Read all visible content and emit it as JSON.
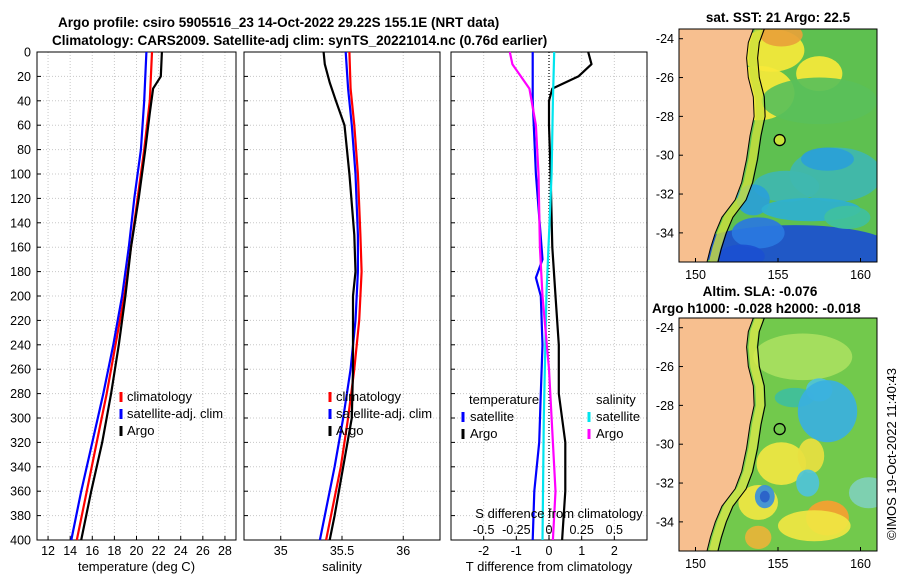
{
  "header": {
    "line1": "Argo profile: csiro 5905516_23 14-Oct-2022 29.22S 155.1E (NRT data)",
    "line2": "Climatology: CARS2009. Satellite-adj clim: synTS_20221014.nc (0.76d earlier)"
  },
  "footer": {
    "stamp": "©IMOS 19-Oct-2022 11:40:43"
  },
  "colors": {
    "climatology": "#ff0000",
    "satellite": "#0000ff",
    "argo": "#000000",
    "sat_salinity": "#00e5ee",
    "argo_salinity": "#ff00ff",
    "land": "#f7bf8f"
  },
  "chart_data": [
    {
      "type": "line",
      "id": "temperature",
      "xlabel": "temperature (deg C)",
      "ylabel": "",
      "xlim": [
        11,
        29
      ],
      "ylim": [
        400,
        0
      ],
      "xticks": [
        "12",
        "14",
        "16",
        "18",
        "20",
        "22",
        "24",
        "26",
        "28"
      ],
      "yticks": [
        "0",
        "20",
        "40",
        "60",
        "80",
        "100",
        "120",
        "140",
        "160",
        "180",
        "200",
        "220",
        "240",
        "260",
        "280",
        "300",
        "320",
        "340",
        "360",
        "380",
        "400"
      ],
      "legend": [
        "climatology",
        "satellite-adj. clim",
        "Argo"
      ],
      "series": [
        {
          "name": "climatology",
          "depth": [
            0,
            40,
            80,
            120,
            160,
            200,
            240,
            280,
            320,
            360,
            400
          ],
          "values": [
            21.4,
            21.2,
            20.7,
            20.1,
            19.5,
            18.9,
            18.1,
            17.3,
            16.4,
            15.5,
            14.6
          ]
        },
        {
          "name": "satellite-adj. clim",
          "depth": [
            0,
            40,
            80,
            120,
            160,
            200,
            240,
            280,
            320,
            360,
            400
          ],
          "values": [
            20.9,
            20.7,
            20.4,
            19.8,
            19.3,
            18.7,
            17.9,
            17.0,
            16.0,
            15.0,
            14.1
          ]
        },
        {
          "name": "Argo",
          "depth": [
            0,
            20,
            30,
            50,
            80,
            120,
            160,
            200,
            240,
            280,
            320,
            360,
            400
          ],
          "values": [
            22.3,
            22.2,
            21.5,
            21.2,
            20.8,
            20.2,
            19.5,
            19.0,
            18.4,
            17.7,
            16.9,
            15.9,
            15.0
          ]
        }
      ]
    },
    {
      "type": "line",
      "id": "salinity",
      "xlabel": "salinity",
      "ylabel": "",
      "xlim": [
        34.7,
        36.3
      ],
      "ylim": [
        400,
        0
      ],
      "xticks": [
        "35",
        "35.5",
        "36"
      ],
      "legend": [
        "climatology",
        "satellite-adj. clim",
        "Argo"
      ],
      "series": [
        {
          "name": "climatology",
          "depth": [
            0,
            30,
            60,
            100,
            150,
            180,
            220,
            260,
            300,
            340,
            380,
            400
          ],
          "values": [
            35.56,
            35.57,
            35.6,
            35.63,
            35.65,
            35.66,
            35.64,
            35.6,
            35.55,
            35.49,
            35.41,
            35.37
          ]
        },
        {
          "name": "satellite-adj. clim",
          "depth": [
            0,
            30,
            60,
            100,
            150,
            180,
            220,
            260,
            300,
            340,
            380,
            400
          ],
          "values": [
            35.53,
            35.55,
            35.58,
            35.61,
            35.63,
            35.63,
            35.61,
            35.57,
            35.51,
            35.44,
            35.36,
            35.32
          ]
        },
        {
          "name": "Argo",
          "depth": [
            0,
            10,
            25,
            40,
            60,
            100,
            150,
            180,
            200,
            220,
            260,
            300,
            340,
            380,
            400
          ],
          "values": [
            35.35,
            35.36,
            35.4,
            35.45,
            35.52,
            35.56,
            35.6,
            35.61,
            35.59,
            35.59,
            35.59,
            35.58,
            35.51,
            35.44,
            35.4
          ]
        }
      ]
    },
    {
      "type": "line",
      "id": "difference",
      "xlabel": "T difference from climatology",
      "x2label": "S difference from climatology",
      "xlim": [
        -3,
        3
      ],
      "ylim": [
        400,
        0
      ],
      "xticks": [
        "-2",
        "-1",
        "0",
        "1",
        "2"
      ],
      "x2ticks": [
        "-0.5",
        "-0.25",
        "0",
        "0.25",
        "0.5"
      ],
      "legend_left_title": "temperature",
      "legend_right_title": "salinity",
      "legend_left": [
        "satellite",
        "Argo"
      ],
      "legend_right": [
        "satellite",
        "Argo"
      ],
      "series": [
        {
          "name": "temperature satellite",
          "depth": [
            0,
            40,
            100,
            170,
            185,
            200,
            240,
            280,
            320,
            360,
            400
          ],
          "values": [
            -0.5,
            -0.5,
            -0.4,
            -0.2,
            -0.4,
            -0.25,
            -0.2,
            -0.25,
            -0.3,
            -0.45,
            -0.5
          ]
        },
        {
          "name": "temperature Argo",
          "depth": [
            0,
            10,
            20,
            30,
            40,
            60,
            100,
            160,
            200,
            240,
            280,
            320,
            360,
            400
          ],
          "values": [
            1.2,
            1.3,
            0.9,
            0.1,
            0.0,
            0.0,
            0.05,
            0.1,
            0.2,
            0.3,
            0.3,
            0.5,
            0.5,
            0.4
          ]
        },
        {
          "name": "salinity satellite",
          "depth": [
            0,
            40,
            100,
            200,
            300,
            400
          ],
          "values": [
            0.04,
            0.03,
            0.02,
            -0.02,
            -0.04,
            -0.05
          ]
        },
        {
          "name": "salinity Argo",
          "depth": [
            0,
            10,
            30,
            60,
            100,
            160,
            200,
            260,
            320,
            360,
            400
          ],
          "values": [
            -0.3,
            -0.28,
            -0.15,
            -0.1,
            -0.08,
            -0.07,
            -0.05,
            0.0,
            0.03,
            0.05,
            0.03
          ]
        }
      ]
    },
    {
      "type": "heatmap",
      "id": "sst-map",
      "title": "sat. SST: 21 Argo: 22.5",
      "xlim": [
        149,
        161
      ],
      "ylim": [
        -35.5,
        -23.5
      ],
      "xticks": [
        "150",
        "155",
        "160"
      ],
      "yticks": [
        "-24",
        "-26",
        "-28",
        "-30",
        "-32",
        "-34"
      ],
      "argo_marker": {
        "lon": 155.1,
        "lat": -29.22
      }
    },
    {
      "type": "heatmap",
      "id": "sla-map",
      "title": "Altim. SLA: -0.076",
      "subtitle": "Argo h1000: -0.028 h2000: -0.018",
      "xlim": [
        149,
        161
      ],
      "ylim": [
        -35.5,
        -23.5
      ],
      "xticks": [
        "150",
        "155",
        "160"
      ],
      "yticks": [
        "-24",
        "-26",
        "-28",
        "-30",
        "-32",
        "-34"
      ],
      "argo_marker": {
        "lon": 155.1,
        "lat": -29.22
      }
    }
  ]
}
